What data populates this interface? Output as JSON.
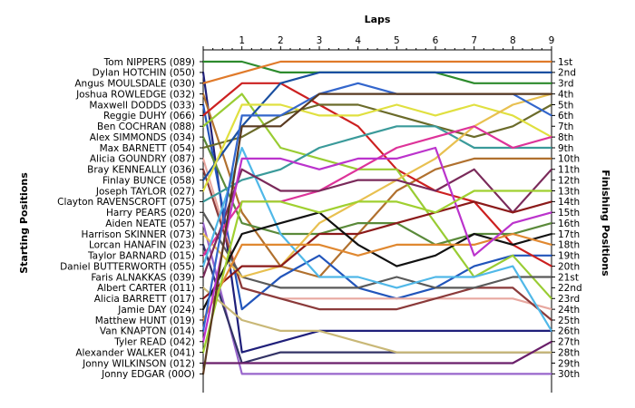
{
  "chart_data": {
    "type": "line",
    "title": "",
    "xlabel": "Laps",
    "ylabel_left": "Starting Positions",
    "ylabel_right": "Finishing Positions",
    "x": [
      0,
      1,
      2,
      3,
      4,
      5,
      6,
      7,
      8,
      9
    ],
    "x_tick_labels": [
      "1",
      "2",
      "3",
      "4",
      "5",
      "6",
      "7",
      "8",
      "9"
    ],
    "ylim": [
      1,
      30
    ],
    "y_inverted": true,
    "grid": false,
    "starting_positions": [
      "Tom NIPPERS (089)",
      "Dylan HOTCHIN (050)",
      "Angus MOULSDALE (030)",
      "Joshua ROWLEDGE (032)",
      "Maxwell DODDS (033)",
      "Reggie DUHY (066)",
      "Ben COCHRAN (088)",
      "Alex SIMMONDS (034)",
      "Max BARNETT (054)",
      "Alicia GOUNDRY (087)",
      "Bray KENNEALLY (036)",
      "Finlay BUNCE (058)",
      "Joseph TAYLOR (027)",
      "Clayton RAVENSCROFT (075)",
      "Harry PEARS (020)",
      "Aiden NEATE (057)",
      "Harrison SKINNER (073)",
      "Lorcan HANAFIN (023)",
      "Taylor BARNARD (015)",
      "Daniel BUTTERWORTH (055)",
      "Faris ALNAKKAS (039)",
      "Albert CARTER (011)",
      "Alicia BARRETT (017)",
      "Jamie DAY (024)",
      "Matthew HUNT (019)",
      "Van KNAPTON (014)",
      "Tyler READ (042)",
      "Alexander WALKER (041)",
      "Jonny WILKINSON (012)",
      "Jonny EDGAR (00O)"
    ],
    "finishing_positions": [
      "1st",
      "2nd",
      "3rd",
      "4th",
      "5th",
      "6th",
      "7th",
      "8th",
      "9th",
      "10th",
      "11th",
      "12th",
      "13th",
      "14th",
      "15th",
      "16th",
      "17th",
      "18th",
      "19th",
      "20th",
      "21st",
      "22nd",
      "23rd",
      "24th",
      "25th",
      "26th",
      "27th",
      "28th",
      "29th",
      "30th"
    ],
    "series": [
      {
        "color": "#2D8B2D",
        "values": [
          1,
          1,
          2,
          2,
          2,
          2,
          2,
          3,
          3,
          3
        ]
      },
      {
        "color": "#1F1F7A",
        "values": [
          2,
          28,
          27,
          26,
          26,
          26,
          26,
          26,
          26,
          26
        ]
      },
      {
        "color": "#E07A2A",
        "values": [
          3,
          2,
          1,
          1,
          1,
          1,
          1,
          1,
          1,
          1
        ]
      },
      {
        "color": "#B0702E",
        "values": [
          4,
          15,
          20,
          21,
          17,
          13,
          11,
          10,
          10,
          10
        ]
      },
      {
        "color": "#2255BB",
        "values": [
          5,
          24,
          21,
          19,
          22,
          23,
          22,
          20,
          19,
          19
        ]
      },
      {
        "color": "#CC2020",
        "values": [
          6,
          3,
          3,
          5,
          7,
          11,
          13,
          14,
          18,
          20
        ]
      },
      {
        "color": "#99CC33",
        "values": [
          7,
          4,
          9,
          10,
          11,
          11,
          16,
          21,
          19,
          23
        ]
      },
      {
        "color": "#5A8A3A",
        "values": [
          8,
          16,
          17,
          17,
          16,
          16,
          18,
          17,
          17,
          16
        ]
      },
      {
        "color": "#6B6B2A",
        "values": [
          9,
          8,
          6,
          5,
          5,
          6,
          7,
          8,
          7,
          5
        ]
      },
      {
        "color": "#E8A8A0",
        "values": [
          10,
          22,
          23,
          23,
          23,
          23,
          23,
          23,
          23,
          24
        ]
      },
      {
        "color": "#8B3A3A",
        "values": [
          11,
          22,
          23,
          24,
          24,
          24,
          23,
          22,
          22,
          25
        ]
      },
      {
        "color": "#1A4FA0",
        "values": [
          12,
          7,
          3,
          2,
          2,
          2,
          2,
          2,
          2,
          2
        ]
      },
      {
        "color": "#E0E040",
        "values": [
          13,
          5,
          5,
          6,
          6,
          5,
          6,
          5,
          6,
          8
        ]
      },
      {
        "color": "#3A9A9A",
        "values": [
          14,
          12,
          11,
          9,
          8,
          7,
          7,
          9,
          9,
          9
        ]
      },
      {
        "color": "#5A5A5A",
        "values": [
          15,
          21,
          22,
          22,
          22,
          21,
          22,
          22,
          21,
          21
        ]
      },
      {
        "color": "#9966CC",
        "values": [
          16,
          30,
          30,
          30,
          30,
          30,
          30,
          30,
          30,
          30
        ]
      },
      {
        "color": "#E8C050",
        "values": [
          17,
          21,
          20,
          16,
          14,
          12,
          10,
          7,
          5,
          4
        ]
      },
      {
        "color": "#333366",
        "values": [
          18,
          29,
          28,
          28,
          28,
          28,
          28,
          28,
          28,
          28
        ]
      },
      {
        "color": "#DD3399",
        "values": [
          19,
          14,
          14,
          13,
          11,
          9,
          8,
          7,
          9,
          8
        ]
      },
      {
        "color": "#50B8E8",
        "values": [
          20,
          9,
          17,
          21,
          21,
          22,
          21,
          21,
          20,
          26
        ]
      },
      {
        "color": "#7A2A5A",
        "values": [
          21,
          11,
          13,
          13,
          12,
          12,
          13,
          11,
          15,
          11
        ]
      },
      {
        "color": "#C9B877",
        "values": [
          22,
          25,
          26,
          26,
          27,
          28,
          28,
          28,
          28,
          28
        ]
      },
      {
        "color": "#8B1A1A",
        "values": [
          23,
          20,
          20,
          17,
          17,
          16,
          15,
          14,
          15,
          14
        ]
      },
      {
        "color": "#111111",
        "values": [
          24,
          17,
          16,
          15,
          18,
          20,
          19,
          17,
          18,
          17
        ]
      },
      {
        "color": "#E08830",
        "values": [
          25,
          18,
          18,
          18,
          19,
          18,
          18,
          18,
          17,
          18
        ]
      },
      {
        "color": "#3366CC",
        "values": [
          26,
          6,
          6,
          4,
          3,
          4,
          4,
          4,
          4,
          6
        ]
      },
      {
        "color": "#BB33CC",
        "values": [
          27,
          10,
          10,
          11,
          10,
          10,
          9,
          19,
          16,
          15
        ]
      },
      {
        "color": "#A0D030",
        "values": [
          28,
          14,
          14,
          15,
          14,
          14,
          15,
          13,
          13,
          13
        ]
      },
      {
        "color": "#6A1F6A",
        "values": [
          29,
          29,
          29,
          29,
          29,
          29,
          29,
          29,
          29,
          27
        ]
      },
      {
        "color": "#5A3A20",
        "values": [
          30,
          7,
          7,
          4,
          4,
          4,
          4,
          4,
          4,
          4
        ]
      }
    ]
  }
}
